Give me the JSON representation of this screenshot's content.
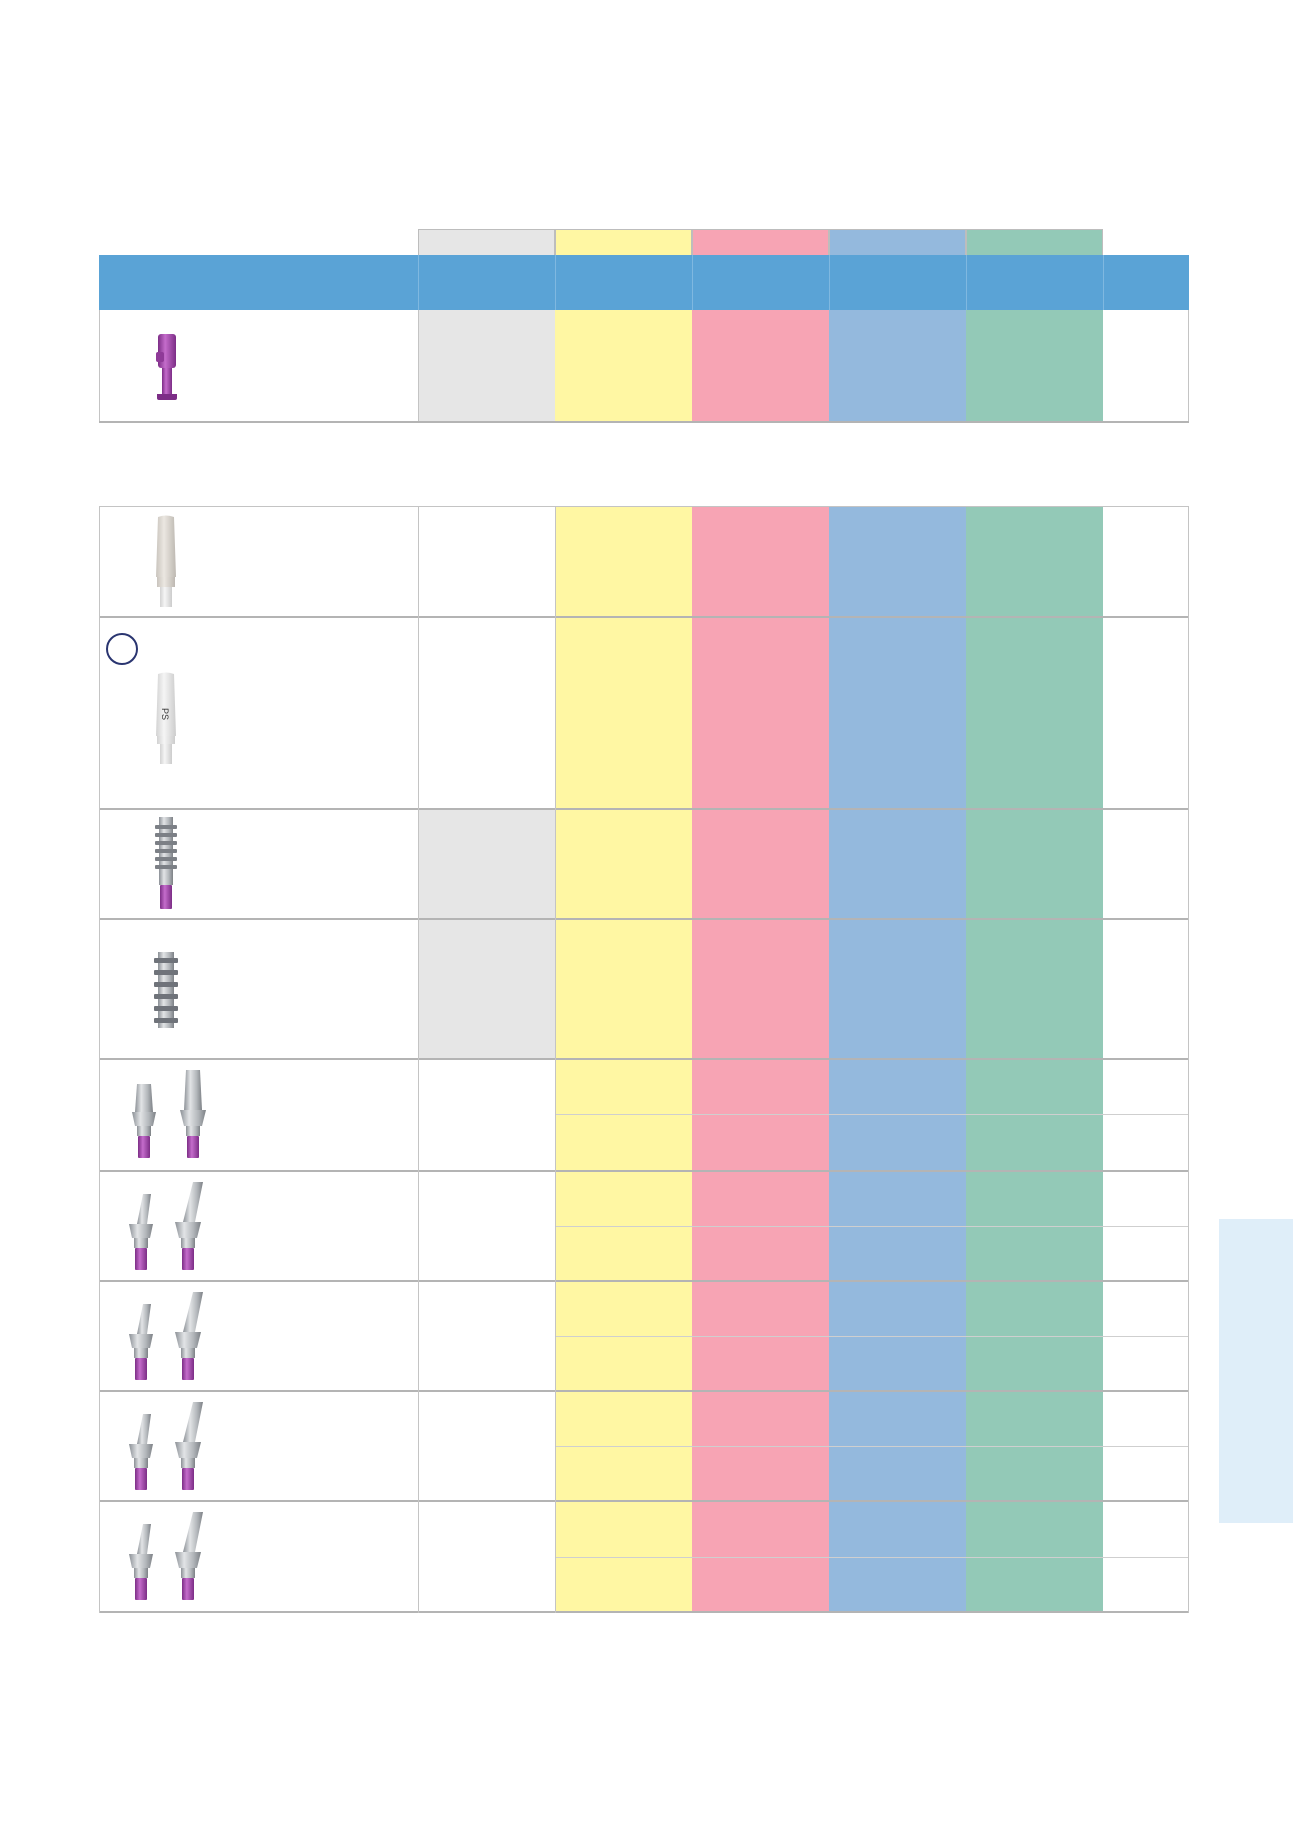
{
  "colors": {
    "header_blue": "#5aa3d6",
    "grey": "#e6e6e6",
    "yellow": "#fff7a3",
    "pink": "#f7a4b4",
    "blue": "#94b9dd",
    "green": "#93c9b7",
    "side_tab": "#dfeef9",
    "purple": "#a04aa8",
    "titanium": "#a9adb2"
  },
  "top_row": {
    "icon": "purple-cap-icon",
    "grey_cell": true
  },
  "rows": [
    {
      "id": "pink-sleeve",
      "icon": "ceramic-sleeve-icon",
      "grey_cell": false,
      "split": false
    },
    {
      "id": "ps-sleeve",
      "icon": "ps-sleeve-icon",
      "grey_cell": false,
      "split": false,
      "badge": "",
      "label": "PS"
    },
    {
      "id": "scan-body",
      "icon": "threaded-post-icon",
      "grey_cell": true,
      "split": false
    },
    {
      "id": "scan-body-short",
      "icon": "threaded-post-short-icon",
      "grey_cell": true,
      "split": false
    },
    {
      "id": "straight-abutment",
      "icon": "straight-abutment-icon",
      "grey_cell": false,
      "split": true
    },
    {
      "id": "angled-abutment-1",
      "icon": "angled-abutment-icon",
      "grey_cell": false,
      "split": true
    },
    {
      "id": "angled-abutment-2",
      "icon": "angled-abutment-icon",
      "grey_cell": false,
      "split": true
    },
    {
      "id": "angled-abutment-3",
      "icon": "angled-abutment-icon",
      "grey_cell": false,
      "split": true
    },
    {
      "id": "angled-abutment-4",
      "icon": "angled-abutment-icon",
      "grey_cell": false,
      "split": true
    }
  ]
}
